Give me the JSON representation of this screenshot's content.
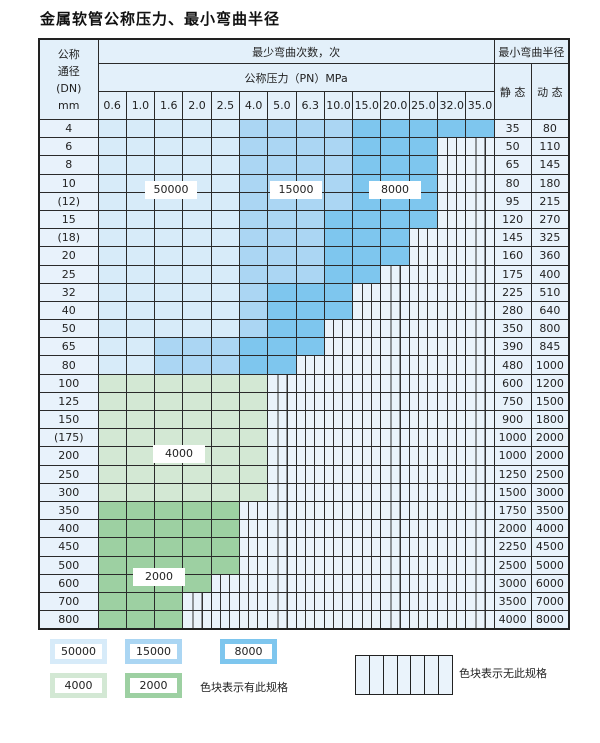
{
  "title": "金属软管公称压力、最小弯曲半径",
  "header": {
    "dn_label": [
      "公称",
      "通径",
      "(DN)",
      "mm"
    ],
    "cycles_label": "最少弯曲次数，次",
    "radius_label": "最小弯曲半径",
    "pressure_label": "公称压力（PN）MPa",
    "static_label": "静 态",
    "dynamic_label": "动 态",
    "pressures": [
      "0.6",
      "1.0",
      "1.6",
      "2.0",
      "2.5",
      "4.0",
      "5.0",
      "6.3",
      "10.0",
      "15.0",
      "20.0",
      "25.0",
      "32.0",
      "35.0"
    ]
  },
  "regions": {
    "a": {
      "label": "50000",
      "color": "#d7ebf9"
    },
    "b": {
      "label": "15000",
      "color": "#abd6f3"
    },
    "c": {
      "label": "8000",
      "color": "#7ec6ee"
    },
    "g1": {
      "label": "4000",
      "color": "#d3e8d4"
    },
    "g2": {
      "label": "2000",
      "color": "#9dd0a2"
    }
  },
  "rows": [
    {
      "dn": "4",
      "static": "35",
      "dynamic": "80",
      "cells": "aaaaabbbbccccc"
    },
    {
      "dn": "6",
      "static": "50",
      "dynamic": "110",
      "cells": "aaaaabbbbcccxx"
    },
    {
      "dn": "8",
      "static": "65",
      "dynamic": "145",
      "cells": "aaaaabbbbcccxx"
    },
    {
      "dn": "10",
      "static": "80",
      "dynamic": "180",
      "cells": "aaaaabbbbcccxx"
    },
    {
      "dn": "(12)",
      "static": "95",
      "dynamic": "215",
      "cells": "aaaaabbbbcccxx"
    },
    {
      "dn": "15",
      "static": "120",
      "dynamic": "270",
      "cells": "aaaaabbbccccxx"
    },
    {
      "dn": "(18)",
      "static": "145",
      "dynamic": "325",
      "cells": "aaaaabbbcccxxx"
    },
    {
      "dn": "20",
      "static": "160",
      "dynamic": "360",
      "cells": "aaaaabbbcccxxx"
    },
    {
      "dn": "25",
      "static": "175",
      "dynamic": "400",
      "cells": "aaaaabbbccxxxx"
    },
    {
      "dn": "32",
      "static": "225",
      "dynamic": "510",
      "cells": "aaaaabcccxxxxx"
    },
    {
      "dn": "40",
      "static": "280",
      "dynamic": "640",
      "cells": "aaaaabcccxxxxx"
    },
    {
      "dn": "50",
      "static": "350",
      "dynamic": "800",
      "cells": "aaaaabccxxxxxx"
    },
    {
      "dn": "65",
      "static": "390",
      "dynamic": "845",
      "cells": "aabbbcccxxxxxx"
    },
    {
      "dn": "80",
      "static": "480",
      "dynamic": "1000",
      "cells": "aabbbccxxxxxxx"
    },
    {
      "dn": "100",
      "static": "600",
      "dynamic": "1200",
      "cells": "GGGGGGxxxxxxxx"
    },
    {
      "dn": "125",
      "static": "750",
      "dynamic": "1500",
      "cells": "GGGGGGxxxxxxxx"
    },
    {
      "dn": "150",
      "static": "900",
      "dynamic": "1800",
      "cells": "GGGGGGxxxxxxxx"
    },
    {
      "dn": "(175)",
      "static": "1000",
      "dynamic": "2000",
      "cells": "GGGGGGxxxxxxxx"
    },
    {
      "dn": "200",
      "static": "1000",
      "dynamic": "2000",
      "cells": "GGGGGGxxxxxxxx"
    },
    {
      "dn": "250",
      "static": "1250",
      "dynamic": "2500",
      "cells": "GGGGGGxxxxxxxx"
    },
    {
      "dn": "300",
      "static": "1500",
      "dynamic": "3000",
      "cells": "GGGGGGxxxxxxxx"
    },
    {
      "dn": "350",
      "static": "1750",
      "dynamic": "3500",
      "cells": "HHHHHxxxxxxxxx"
    },
    {
      "dn": "400",
      "static": "2000",
      "dynamic": "4000",
      "cells": "HHHHHxxxxxxxxx"
    },
    {
      "dn": "450",
      "static": "2250",
      "dynamic": "4500",
      "cells": "HHHHHxxxxxxxxx"
    },
    {
      "dn": "500",
      "static": "2500",
      "dynamic": "5000",
      "cells": "HHHHHxxxxxxxxx"
    },
    {
      "dn": "600",
      "static": "3000",
      "dynamic": "6000",
      "cells": "HHHHxxxxxxxxxx"
    },
    {
      "dn": "700",
      "static": "3500",
      "dynamic": "7000",
      "cells": "HHHxxxxxxxxxxx"
    },
    {
      "dn": "800",
      "static": "4000",
      "dynamic": "8000",
      "cells": "HHHxxxxxxxxxxx"
    }
  ],
  "legend": {
    "has_spec_text": "色块表示有此规格",
    "no_spec_text": "色块表示无此规格"
  }
}
